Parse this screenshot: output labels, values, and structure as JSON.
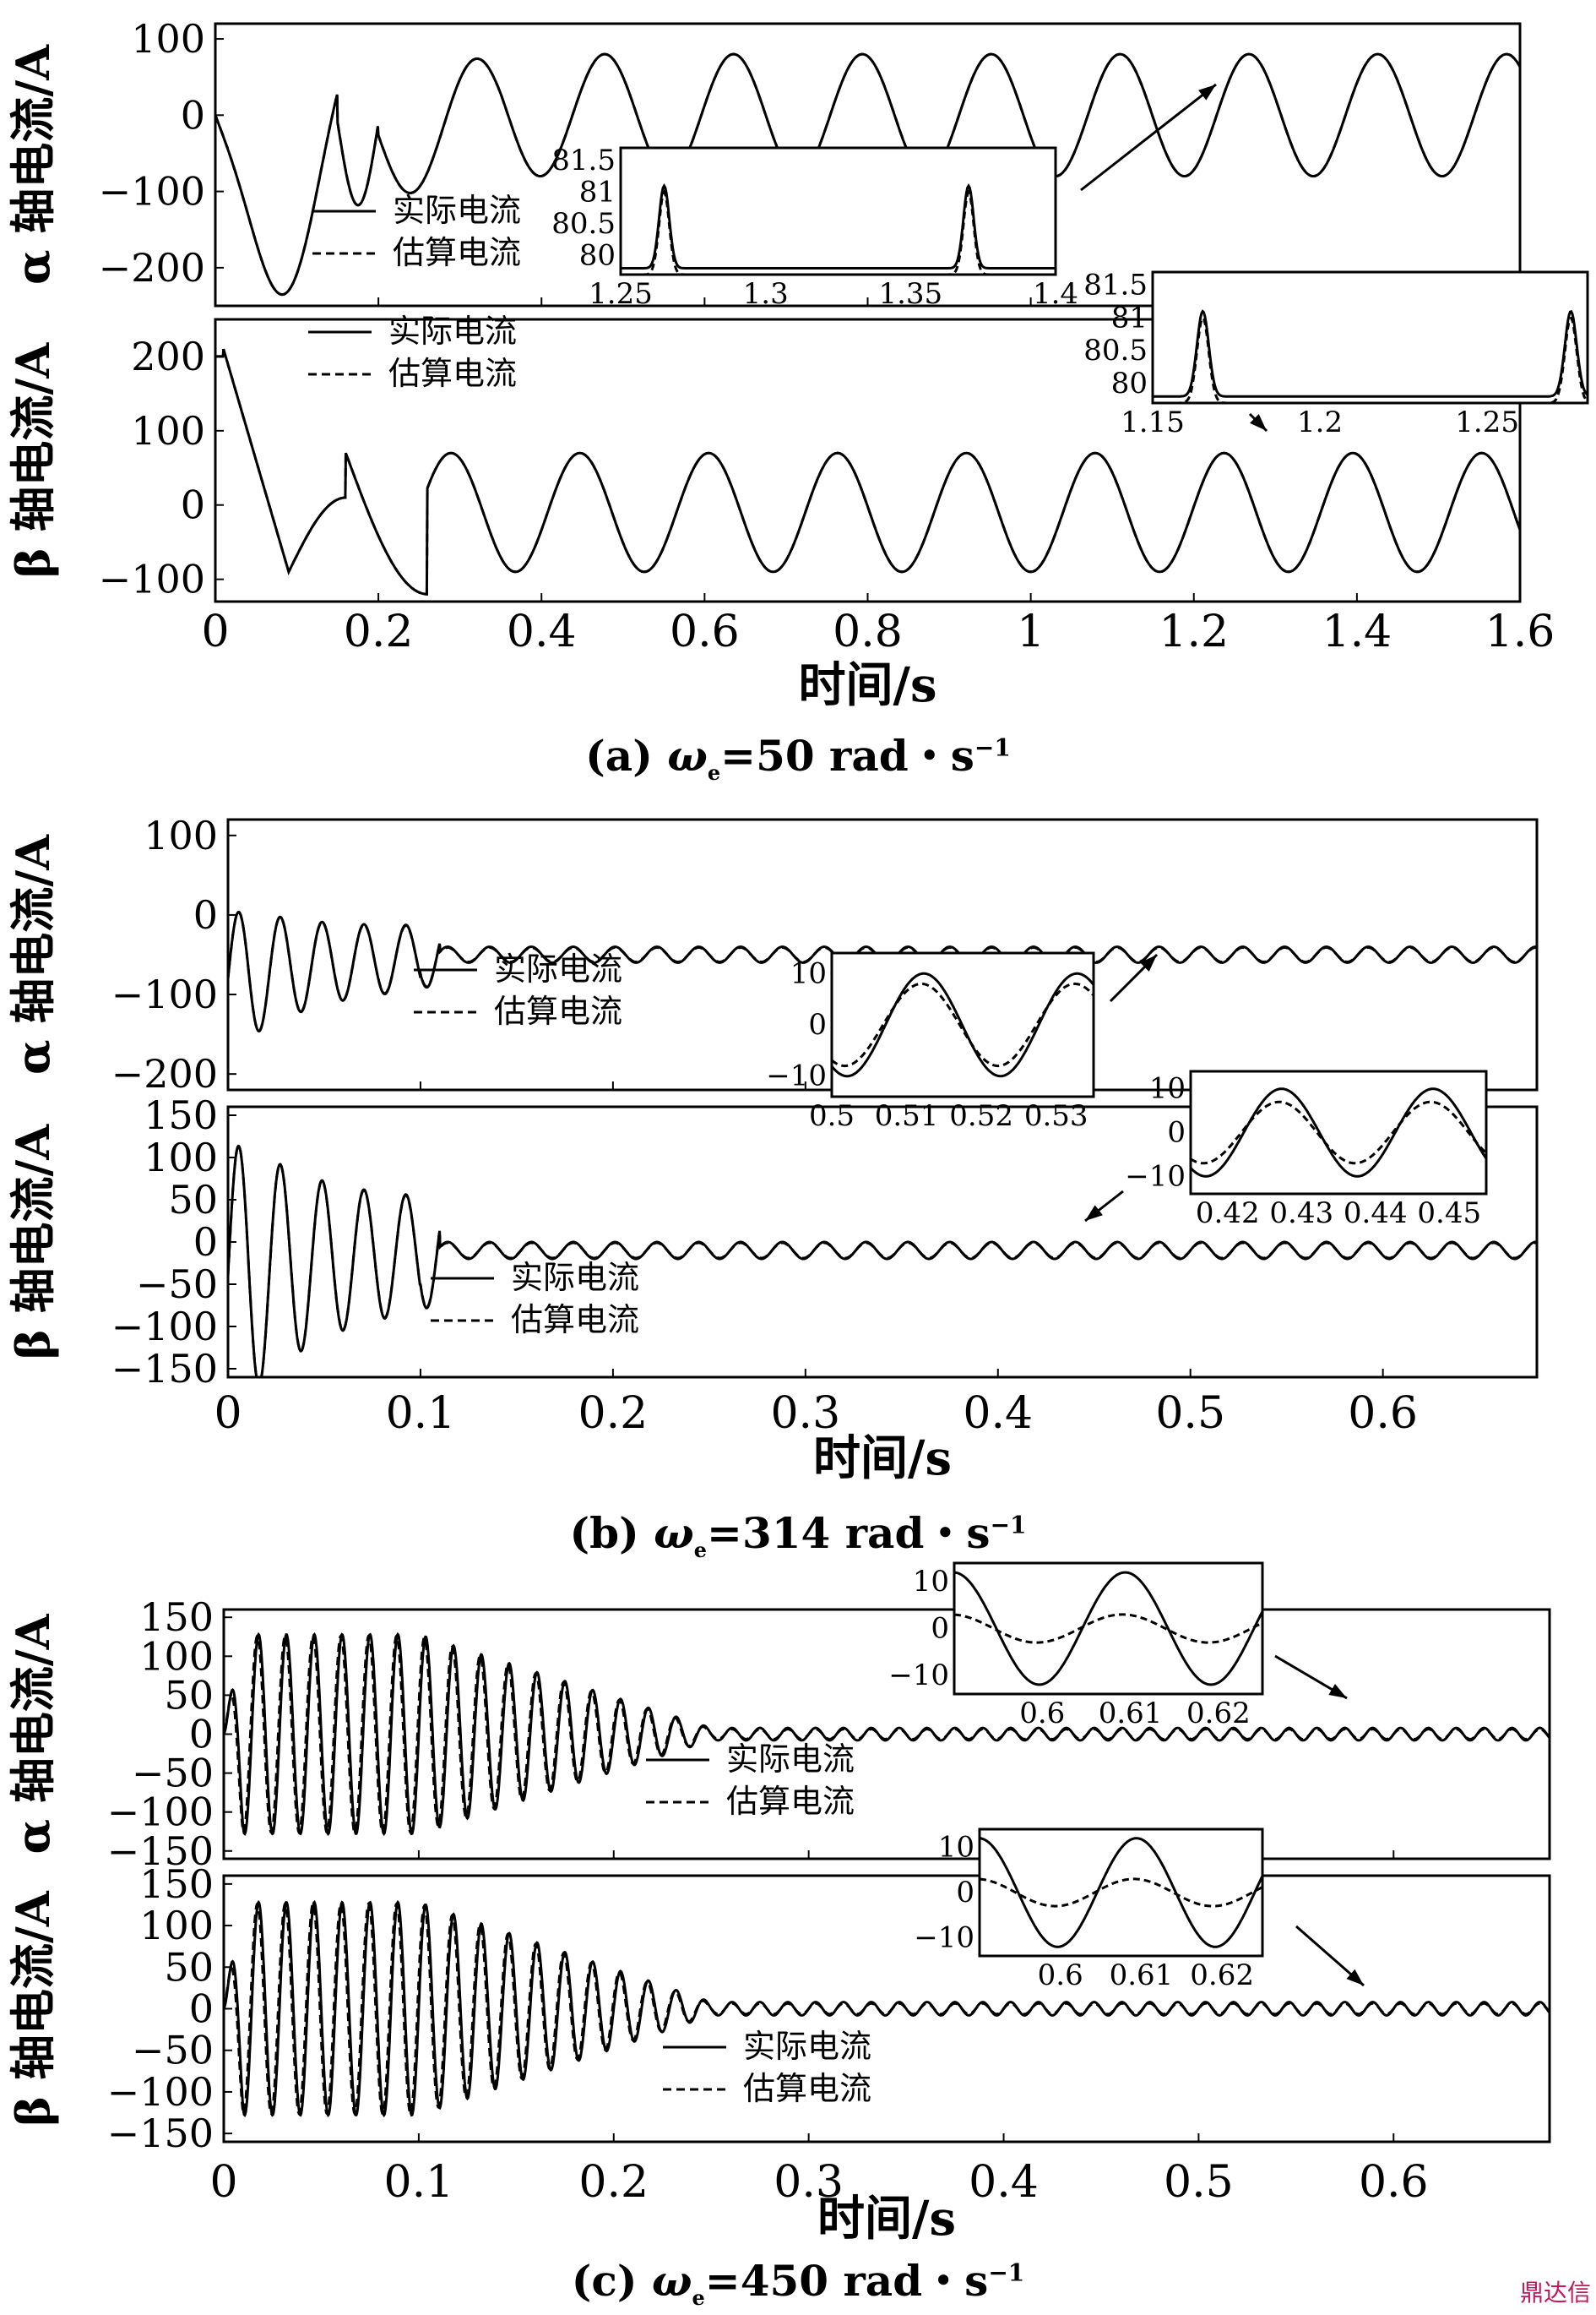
{
  "legend": {
    "actual": "实际电流",
    "estimated": "估算电流"
  },
  "x_axis_label": "时间/s",
  "captions": [
    {
      "prefix": "(a)",
      "omega": "ω",
      "sub": "e",
      "rest": "=50 rad・s",
      "sup": "−1"
    },
    {
      "prefix": "(b)",
      "omega": "ω",
      "sub": "e",
      "rest": "=314 rad・s",
      "sup": "−1"
    },
    {
      "prefix": "(c)",
      "omega": "ω",
      "sub": "e",
      "rest": "=450 rad・s",
      "sup": "−1"
    }
  ],
  "watermark": "鼎达信",
  "colors": {
    "line": "#000000",
    "background": "#ffffff"
  },
  "chart_data": [
    {
      "figure": "a",
      "type": "line",
      "xlabel": "时间/s",
      "xlim": [
        0,
        1.6
      ],
      "xticks": [
        "0",
        "0.2",
        "0.4",
        "0.6",
        "0.8",
        "1",
        "1.2",
        "1.4",
        "1.6"
      ],
      "panels": [
        {
          "ylabel": "α 轴电流/A",
          "ylim": [
            -250,
            120
          ],
          "yticks": [
            100,
            0,
            -100,
            -200
          ],
          "series": [
            {
              "name": "实际电流",
              "style": "solid"
            },
            {
              "name": "估算电流",
              "style": "dashed"
            }
          ],
          "steady_amplitude": 80,
          "inset": {
            "xlim": [
              1.25,
              1.4
            ],
            "ylim": [
              79.7,
              81.7
            ],
            "xticks": [
              "1.25",
              "1.3",
              "1.35",
              "1.4"
            ],
            "yticks": [
              "81.5",
              "81",
              "80.5",
              "80"
            ],
            "peaks_at": [
              1.265,
              1.37
            ]
          }
        },
        {
          "ylabel": "β 轴电流/A",
          "ylim": [
            -130,
            250
          ],
          "yticks": [
            200,
            100,
            0,
            -100
          ],
          "series": [
            {
              "name": "实际电流",
              "style": "solid"
            },
            {
              "name": "估算电流",
              "style": "dashed"
            }
          ],
          "steady_amplitude": 80,
          "inset": {
            "xlim": [
              1.15,
              1.28
            ],
            "ylim": [
              79.7,
              81.7
            ],
            "xticks": [
              "1.15",
              "1.2",
              "1.25"
            ],
            "yticks": [
              "81.5",
              "81",
              "80.5",
              "80"
            ],
            "peaks_at": [
              1.165,
              1.275
            ]
          }
        }
      ]
    },
    {
      "figure": "b",
      "type": "line",
      "xlabel": "时间/s",
      "xlim": [
        0,
        0.68
      ],
      "xticks": [
        "0",
        "0.1",
        "0.2",
        "0.3",
        "0.4",
        "0.5",
        "0.6"
      ],
      "panels": [
        {
          "ylabel": "α 轴电流/A",
          "ylim": [
            -220,
            120
          ],
          "yticks": [
            100,
            0,
            -100,
            -200
          ],
          "series": [
            {
              "name": "实际电流",
              "style": "solid"
            },
            {
              "name": "估算电流",
              "style": "dashed"
            }
          ],
          "steady_offset": -50,
          "steady_amplitude": 10,
          "transient_peak": 80,
          "inset": {
            "xlim": [
              0.5,
              0.535
            ],
            "ylim": [
              -14,
              14
            ],
            "xticks": [
              "0.5",
              "0.51",
              "0.52",
              "0.53"
            ],
            "yticks": [
              "10",
              "0",
              "−10"
            ],
            "actual_amplitude": 10,
            "estimated_amplitude": 8
          }
        },
        {
          "ylabel": "β 轴电流/A",
          "ylim": [
            -160,
            160
          ],
          "yticks": [
            150,
            100,
            50,
            0,
            -50,
            -100,
            -150
          ],
          "series": [
            {
              "name": "实际电流",
              "style": "solid"
            },
            {
              "name": "估算电流",
              "style": "dashed"
            }
          ],
          "steady_offset": -10,
          "steady_amplitude": 10,
          "transient_peak": 150,
          "inset": {
            "xlim": [
              0.415,
              0.455
            ],
            "ylim": [
              -14,
              14
            ],
            "xticks": [
              "0.42",
              "0.43",
              "0.44",
              "0.45"
            ],
            "yticks": [
              "10",
              "0",
              "−10"
            ],
            "actual_amplitude": 10,
            "estimated_amplitude": 7
          }
        }
      ]
    },
    {
      "figure": "c",
      "type": "line",
      "xlabel": "时间/s",
      "xlim": [
        0,
        0.68
      ],
      "xticks": [
        "0",
        "0.1",
        "0.2",
        "0.3",
        "0.4",
        "0.5",
        "0.6"
      ],
      "panels": [
        {
          "ylabel": "α 轴电流/A",
          "ylim": [
            -160,
            160
          ],
          "yticks": [
            150,
            100,
            50,
            0,
            -50,
            -100,
            -150
          ],
          "series": [
            {
              "name": "实际电流",
              "style": "solid"
            },
            {
              "name": "估算电流",
              "style": "dashed"
            }
          ],
          "steady_offset": 0,
          "steady_amplitude": 8,
          "transient_peak": 120,
          "inset": {
            "xlim": [
              0.59,
              0.625
            ],
            "ylim": [
              -14,
              14
            ],
            "xticks": [
              "0.6",
              "0.61",
              "0.62"
            ],
            "yticks": [
              "10",
              "0",
              "−10"
            ],
            "actual_amplitude": 12,
            "estimated_amplitude": 3
          }
        },
        {
          "ylabel": "β 轴电流/A",
          "ylim": [
            -160,
            160
          ],
          "yticks": [
            150,
            100,
            50,
            0,
            -50,
            -100,
            -150
          ],
          "series": [
            {
              "name": "实际电流",
              "style": "solid"
            },
            {
              "name": "估算电流",
              "style": "dashed"
            }
          ],
          "steady_offset": 0,
          "steady_amplitude": 8,
          "transient_peak": 120,
          "inset": {
            "xlim": [
              0.59,
              0.625
            ],
            "ylim": [
              -14,
              14
            ],
            "xticks": [
              "0.6",
              "0.61",
              "0.62"
            ],
            "yticks": [
              "10",
              "0",
              "−10"
            ],
            "actual_amplitude": 12,
            "estimated_amplitude": 3
          }
        }
      ]
    }
  ]
}
